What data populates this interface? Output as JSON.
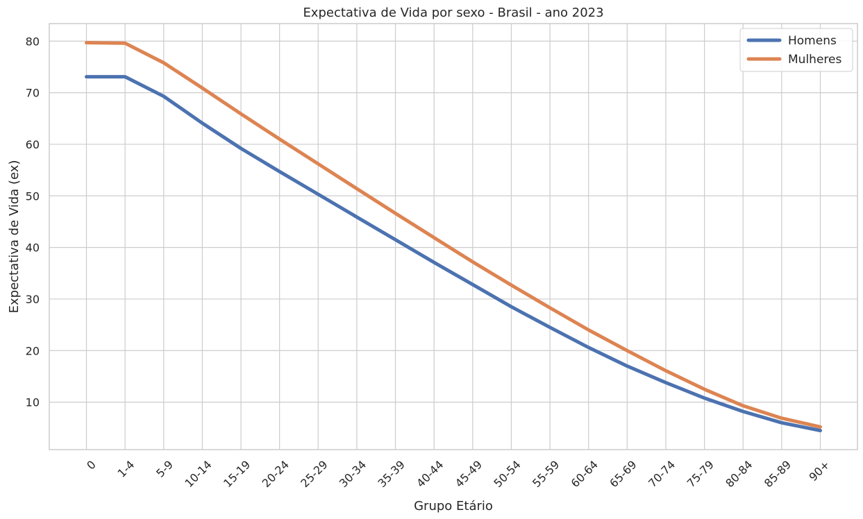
{
  "chart_data": {
    "type": "line",
    "title": "Expectativa de Vida por sexo - Brasil - ano 2023",
    "xlabel": "Grupo Etário",
    "ylabel": "Expectativa de Vida (ex)",
    "categories": [
      "0",
      "1-4",
      "5-9",
      "10-14",
      "15-19",
      "20-24",
      "25-29",
      "30-34",
      "35-39",
      "40-44",
      "45-49",
      "50-54",
      "55-59",
      "60-64",
      "65-69",
      "70-74",
      "75-79",
      "80-84",
      "85-89",
      "90+"
    ],
    "yticks": [
      10,
      20,
      30,
      40,
      50,
      60,
      70,
      80
    ],
    "ylim": [
      0.8,
      83.4
    ],
    "grid": true,
    "legend_position": "top-right",
    "series": [
      {
        "name": "Homens",
        "color": "#4c72b0",
        "values": [
          73.1,
          73.1,
          69.3,
          64.1,
          59.2,
          54.7,
          50.3,
          45.9,
          41.5,
          37.1,
          32.8,
          28.5,
          24.5,
          20.6,
          17.0,
          13.8,
          10.8,
          8.2,
          6.0,
          4.5
        ]
      },
      {
        "name": "Mulheres",
        "color": "#dd8452",
        "values": [
          79.7,
          79.6,
          75.8,
          70.9,
          65.9,
          61.0,
          56.2,
          51.4,
          46.6,
          41.9,
          37.2,
          32.7,
          28.3,
          24.0,
          20.0,
          16.1,
          12.5,
          9.3,
          6.9,
          5.2
        ]
      }
    ]
  }
}
